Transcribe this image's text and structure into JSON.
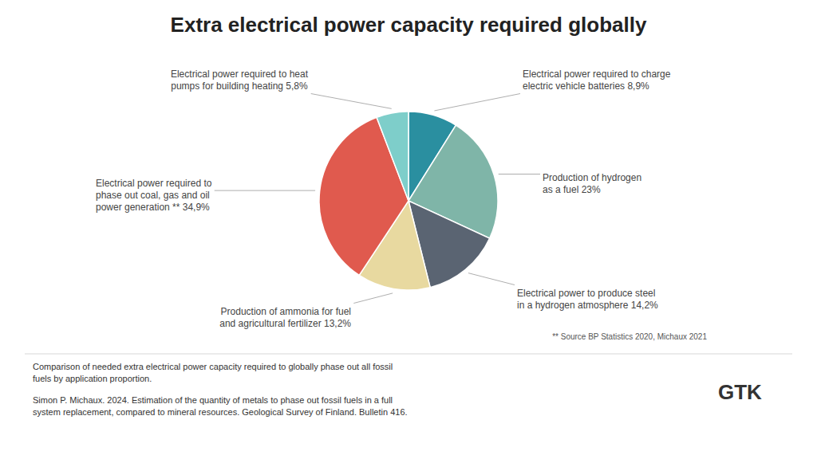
{
  "chart_data": {
    "type": "pie",
    "title": "Extra electrical power capacity required globally",
    "categories": [
      "Electrical power required to charge\nelectric vehicle batteries 8,9%",
      "Production of hydrogen\nas a fuel 23%",
      "Electrical power to produce steel\nin a hydrogen atmosphere 14,2%",
      "Production of ammonia for fuel\nand agricultural fertilizer 13,2%",
      "Electrical power required to\nphase out coal, gas and oil\npower generation ** 34,9%",
      "Electrical power required to heat\npumps for building heating 5,8%"
    ],
    "values": [
      8.9,
      23.0,
      14.2,
      13.2,
      34.9,
      5.8
    ],
    "colors": [
      "#2A8FA0",
      "#7FB5A8",
      "#5A6472",
      "#E8D9A0",
      "#E05A4E",
      "#7ECECA"
    ],
    "annotations": [
      "** Source BP Statistics 2020, Michaux 2021",
      "Comparison of needed extra electrical power capacity required to globally phase out all fossil\nfuels by application proportion.",
      "Simon P. Michaux. 2024. Estimation of the quantity of metals to phase out fossil fuels in a full\nsystem replacement, compared to mineral resources. Geological Survey of Finland. Bulletin 416.",
      "GTK"
    ]
  }
}
